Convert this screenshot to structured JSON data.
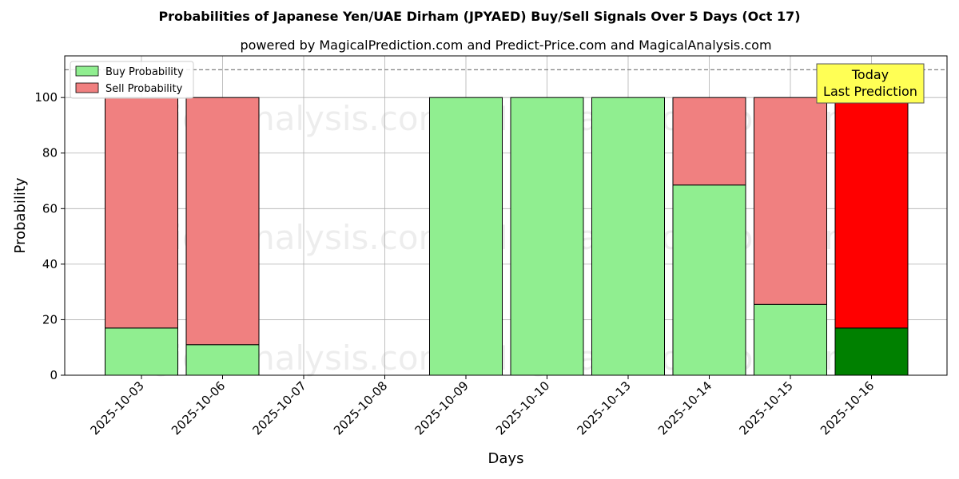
{
  "chart_data": {
    "type": "bar",
    "stacked": true,
    "title": "Probabilities of Japanese Yen/UAE Dirham (JPYAED) Buy/Sell Signals Over 5 Days (Oct 17)",
    "subtitle": "powered by MagicalPrediction.com and Predict-Price.com and MagicalAnalysis.com",
    "xlabel": "Days",
    "ylabel": "Probability",
    "ylim": [
      0,
      115
    ],
    "yticks": [
      0,
      20,
      40,
      60,
      80,
      100
    ],
    "grid": true,
    "categories": [
      "2025-10-03",
      "2025-10-06",
      "2025-10-07",
      "2025-10-08",
      "2025-10-09",
      "2025-10-10",
      "2025-10-13",
      "2025-10-14",
      "2025-10-15",
      "2025-10-16"
    ],
    "series": [
      {
        "name": "Buy Probability",
        "color": "#90ee90",
        "values": [
          17,
          11,
          0,
          0,
          100,
          100,
          100,
          68.5,
          25.5,
          17
        ]
      },
      {
        "name": "Sell Probability",
        "color": "#f08080",
        "values": [
          83,
          89,
          0,
          0,
          0,
          0,
          0,
          31.5,
          74.5,
          83
        ]
      }
    ],
    "highlight": {
      "category": "2025-10-16",
      "buy_color": "#008000",
      "sell_color": "#ff0000"
    },
    "reference_line": {
      "y": 110,
      "style": "dashed",
      "color": "#808080"
    },
    "annotation": {
      "lines": [
        "Today",
        "Last Prediction"
      ],
      "background": "#ffff55"
    },
    "legend": {
      "placement": "top-left"
    },
    "watermarks": [
      "MagicalAnalysis.com",
      "MagicalPrediction.com"
    ]
  }
}
